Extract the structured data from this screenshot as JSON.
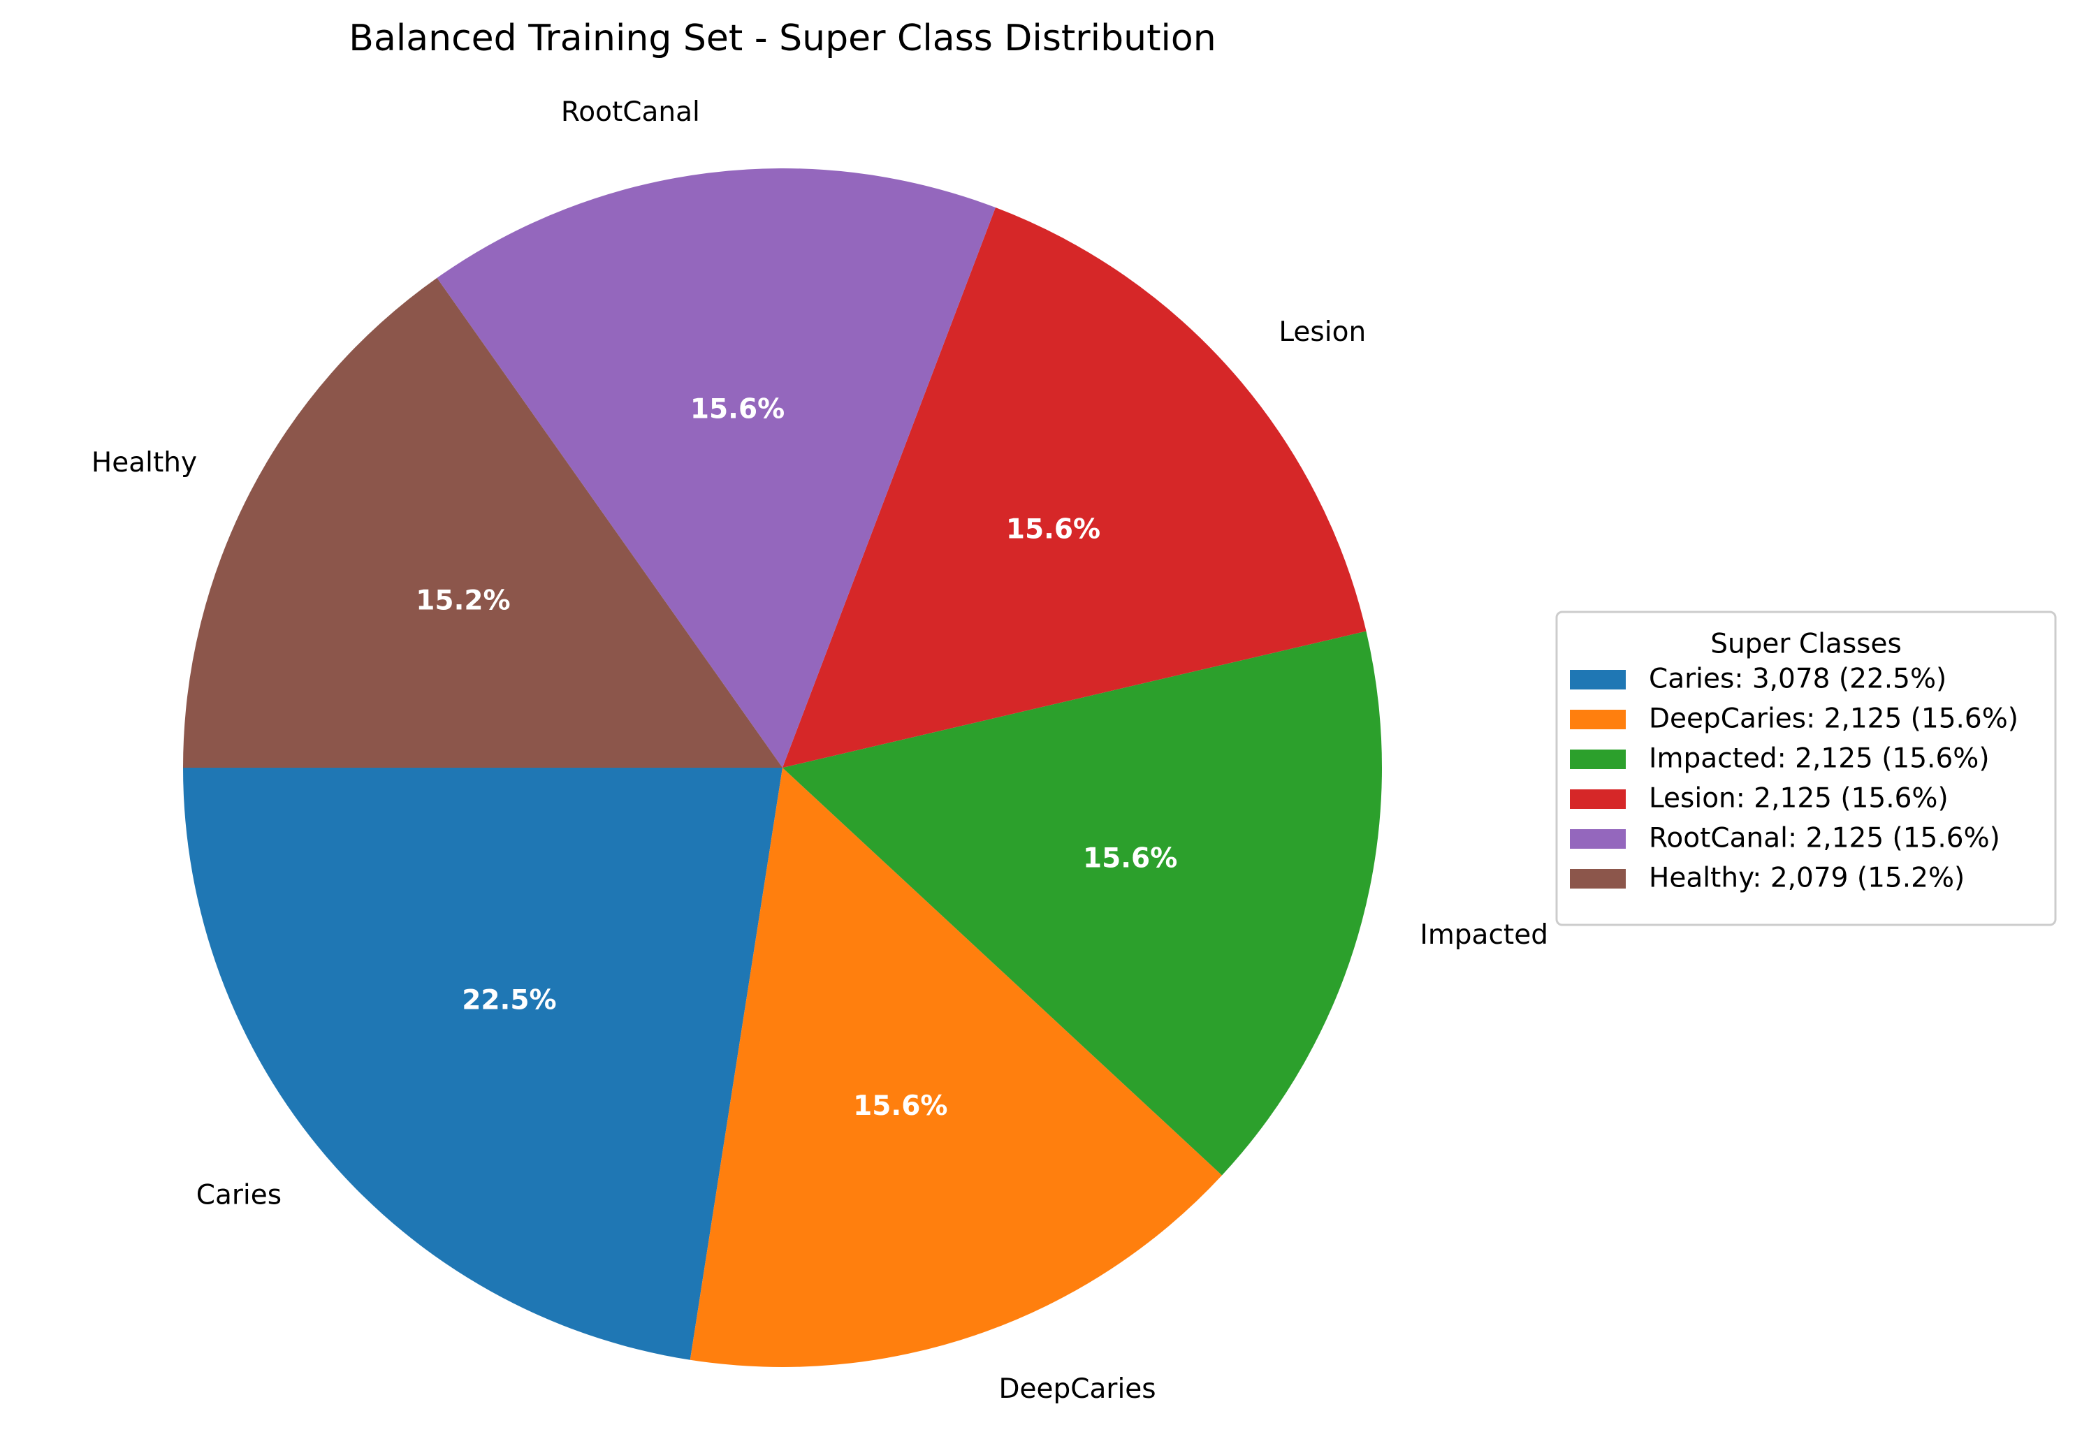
{
  "chart_data": {
    "type": "pie",
    "title": "Balanced Training Set - Super Class Distribution",
    "start_angle_deg": 180,
    "direction": "counterclockwise",
    "slices": [
      {
        "label": "Caries",
        "value": 3078,
        "pct_label": "22.5%",
        "legend": "Caries: 3,078 (22.5%)",
        "color": "#1f77b4"
      },
      {
        "label": "DeepCaries",
        "value": 2125,
        "pct_label": "15.6%",
        "legend": "DeepCaries: 2,125 (15.6%)",
        "color": "#ff7f0e"
      },
      {
        "label": "Impacted",
        "value": 2125,
        "pct_label": "15.6%",
        "legend": "Impacted: 2,125 (15.6%)",
        "color": "#2ca02c"
      },
      {
        "label": "Lesion",
        "value": 2125,
        "pct_label": "15.6%",
        "legend": "Lesion: 2,125 (15.6%)",
        "color": "#d62728"
      },
      {
        "label": "RootCanal",
        "value": 2125,
        "pct_label": "15.6%",
        "legend": "RootCanal: 2,125 (15.6%)",
        "color": "#9467bd"
      },
      {
        "label": "Healthy",
        "value": 2079,
        "pct_label": "15.2%",
        "legend": "Healthy: 2,079 (15.2%)",
        "color": "#8c564b"
      }
    ],
    "legend": {
      "title": "Super Classes",
      "placement": "right"
    }
  }
}
